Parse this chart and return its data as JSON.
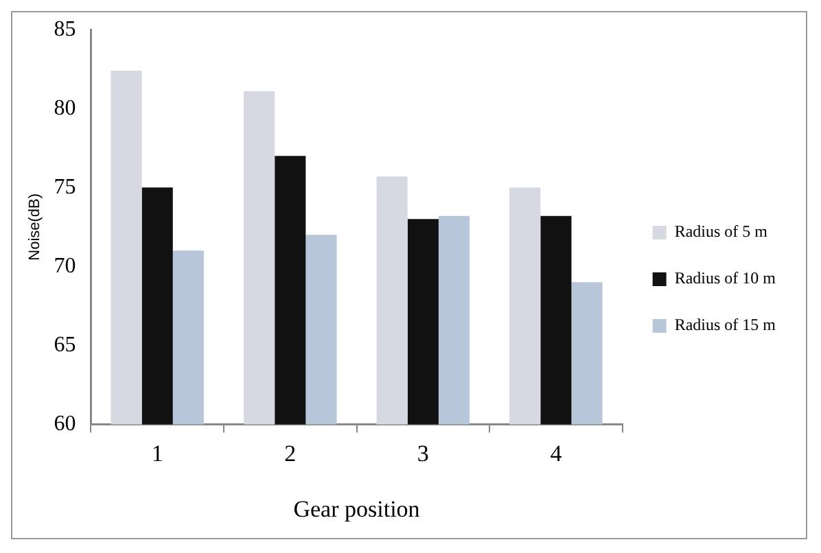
{
  "chart_data": {
    "type": "bar",
    "xlabel": "Gear position",
    "ylabel": "Noise(dB)",
    "categories": [
      "1",
      "2",
      "3",
      "4"
    ],
    "series": [
      {
        "name": "Radius of 5 m",
        "color": "#d6d9e2",
        "values": [
          82.4,
          81.1,
          75.7,
          75.0
        ]
      },
      {
        "name": "Radius of 10 m",
        "color": "#111111",
        "values": [
          75.0,
          77.0,
          73.0,
          73.2
        ]
      },
      {
        "name": "Radius of 15 m",
        "color": "#b8c6da",
        "values": [
          71.0,
          72.0,
          73.2,
          69.0
        ]
      }
    ],
    "ylim": [
      60,
      85
    ],
    "yticks": [
      60,
      65,
      70,
      75,
      80,
      85
    ],
    "grid": false,
    "legend": "right"
  }
}
